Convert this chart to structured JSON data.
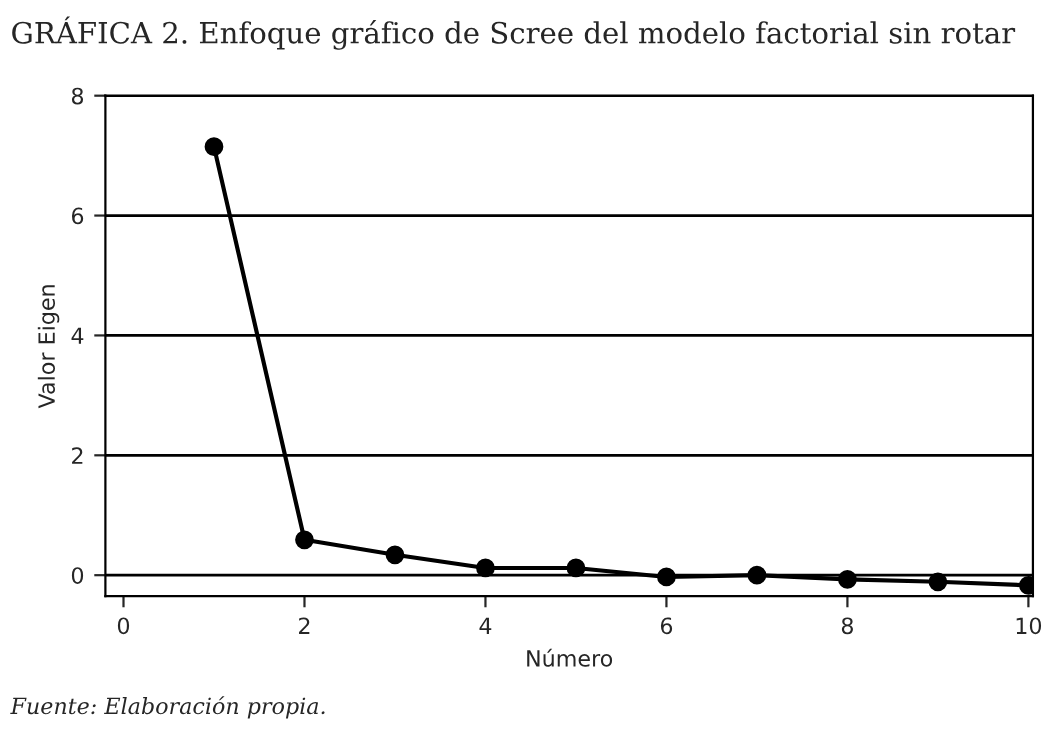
{
  "chart_data": {
    "type": "line",
    "title": "GRÁFICA 2. Enfoque gráfico de Scree del modelo factorial sin rotar",
    "xlabel": "Número",
    "ylabel": "Valor Eigen",
    "x": [
      1,
      2,
      3,
      4,
      5,
      6,
      7,
      8,
      9,
      10
    ],
    "series": [
      {
        "color": "#000000",
        "values": [
          7.15,
          0.59,
          0.34,
          0.12,
          0.12,
          -0.03,
          0.0,
          -0.07,
          -0.11,
          -0.17
        ]
      }
    ],
    "xlim": [
      -0.2,
      10.05
    ],
    "ylim": [
      -0.35,
      8
    ],
    "xticks": [
      0,
      2,
      4,
      6,
      8,
      10
    ],
    "yticks": [
      0,
      2,
      4,
      6,
      8
    ],
    "grid": "y",
    "marker": "circle",
    "line_style": "solid",
    "annotations": [
      "Fuente: Elaboración propia."
    ]
  }
}
